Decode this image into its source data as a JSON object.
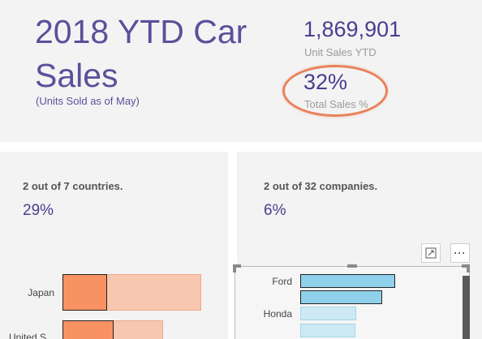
{
  "header": {
    "title": "2018 YTD Car Sales",
    "subtitle": "(Units Sold as of May)",
    "kpis": [
      {
        "value": "1,869,901",
        "label": "Unit Sales YTD"
      },
      {
        "value": "32%",
        "label": "Total Sales %"
      }
    ],
    "highlight_color": "#e8825a"
  },
  "countries_card": {
    "stat": "2 out of 7 countries.",
    "percent": "29%",
    "rows": [
      {
        "label": "Japan",
        "selected_fraction": 0.32,
        "total_fraction": 1.0
      },
      {
        "label": "United S...",
        "selected_fraction": 0.38,
        "total_fraction": 0.7
      }
    ]
  },
  "companies_card": {
    "stat": "2 out of 32 companies.",
    "percent": "6%",
    "rows": [
      {
        "label": "Ford",
        "selected": true
      },
      {
        "label": "",
        "selected": true
      },
      {
        "label": "Honda",
        "selected": false
      },
      {
        "label": "",
        "selected": false
      }
    ],
    "toolbar": {
      "focus_icon": "focus-mode-icon",
      "more_icon": "more-options-icon",
      "more_label": "···"
    }
  },
  "colors": {
    "accent_purple": "#5c4f9a",
    "orange_bar": "#f99263",
    "blue_bar": "#8fd1ea"
  }
}
